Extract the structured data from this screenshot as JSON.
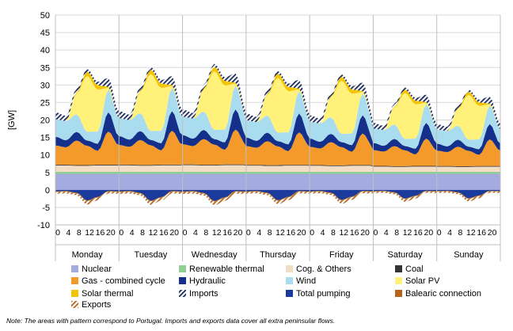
{
  "chart_data": {
    "type": "area",
    "title": "",
    "ylabel": "[GW]",
    "ylim": [
      -10,
      50
    ],
    "yticks": [
      -10,
      -5,
      0,
      5,
      10,
      15,
      20,
      25,
      30,
      35,
      40,
      45,
      50
    ],
    "days": [
      "Monday",
      "Tuesday",
      "Wednesday",
      "Thursday",
      "Friday",
      "Saturday",
      "Sunday"
    ],
    "hour_ticks": [
      "0",
      "4",
      "8",
      "12",
      "16",
      "20"
    ],
    "hours_per_day": 24,
    "grid": "horizontal",
    "legend_position": "bottom",
    "series": [
      {
        "name": "Nuclear",
        "color": "#a4abde",
        "pattern": false,
        "stack": "pos",
        "typical_profile": [
          4.6,
          4.6,
          4.6,
          4.6,
          4.6,
          4.6
        ]
      },
      {
        "name": "Renewable thermal",
        "color": "#8fcf8f",
        "pattern": false,
        "stack": "pos",
        "typical_profile": [
          0.6,
          0.6,
          0.6,
          0.6,
          0.6,
          0.6
        ]
      },
      {
        "name": "Cog. & Others",
        "color": "#f3ddc4",
        "pattern": false,
        "stack": "pos",
        "typical_profile": [
          1.8,
          1.8,
          1.7,
          1.7,
          1.8,
          1.8
        ]
      },
      {
        "name": "Coal",
        "color": "#333333",
        "pattern": false,
        "stack": "pos",
        "typical_profile": [
          0.2,
          0.2,
          0.2,
          0.2,
          0.2,
          0.2
        ]
      },
      {
        "name": "Gas - combined cycle",
        "color": "#f39a2a",
        "pattern": false,
        "stack": "pos",
        "typical_profile": [
          5.5,
          5.0,
          7.0,
          5.5,
          4.0,
          9.5
        ]
      },
      {
        "name": "Hydraulic",
        "color": "#14308a",
        "pattern": false,
        "stack": "pos",
        "typical_profile": [
          2.5,
          2.0,
          2.5,
          1.5,
          2.0,
          5.5
        ]
      },
      {
        "name": "Wind",
        "color": "#aadcf0",
        "pattern": false,
        "stack": "pos",
        "typical_profile": [
          5.0,
          5.5,
          5.0,
          2.5,
          3.5,
          6.5
        ]
      },
      {
        "name": "Solar PV",
        "color": "#fff17a",
        "pattern": false,
        "stack": "pos",
        "typical_profile": [
          0.0,
          0.0,
          6.0,
          16.0,
          12.0,
          0.5
        ]
      },
      {
        "name": "Solar thermal",
        "color": "#f5c400",
        "pattern": false,
        "stack": "pos",
        "typical_profile": [
          0.0,
          0.0,
          0.3,
          1.2,
          1.2,
          0.3
        ]
      },
      {
        "name": "Imports",
        "color": "#1a2a5c",
        "pattern": true,
        "stack": "pos",
        "typical_profile": [
          2.0,
          1.5,
          1.0,
          0.8,
          1.0,
          2.5
        ]
      },
      {
        "name": "Total pumping",
        "color": "#1a3a9c",
        "pattern": false,
        "stack": "neg",
        "typical_profile": [
          -0.4,
          -0.3,
          -0.8,
          -3.0,
          -2.0,
          -0.3
        ]
      },
      {
        "name": "Balearic connection",
        "color": "#b5651d",
        "pattern": false,
        "stack": "neg",
        "typical_profile": [
          -0.2,
          -0.2,
          -0.2,
          -0.2,
          -0.2,
          -0.2
        ]
      },
      {
        "name": "Exports",
        "color": "#b5651d",
        "pattern": true,
        "stack": "neg",
        "typical_profile": [
          -0.5,
          -0.5,
          -0.5,
          -1.0,
          -0.8,
          -0.5
        ]
      }
    ],
    "note": "Note: The areas with pattern correspond to Portugal. Imports and exports data cover all extra peninsular flows."
  }
}
